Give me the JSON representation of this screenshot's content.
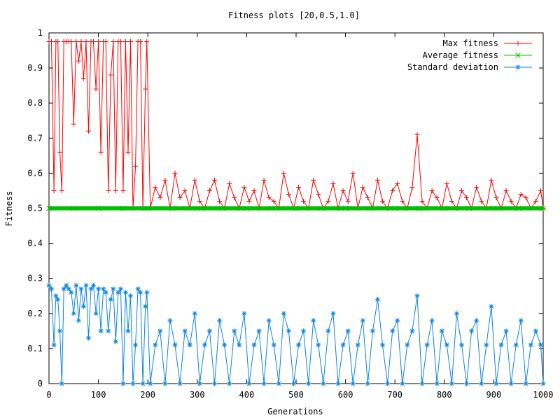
{
  "chart_data": {
    "type": "line",
    "title": "Fitness plots [20,0.5,1.0]",
    "xlabel": "Generations",
    "ylabel": "Fitness",
    "xlim": [
      0,
      1000
    ],
    "ylim": [
      0,
      1
    ],
    "xticks": [
      0,
      100,
      200,
      300,
      400,
      500,
      600,
      700,
      800,
      900,
      1000
    ],
    "yticks": [
      0,
      0.1,
      0.2,
      0.3,
      0.4,
      0.5,
      0.6,
      0.7,
      0.8,
      0.9,
      1
    ],
    "xtick_labels": [
      "0",
      "100",
      "200",
      "300",
      "400",
      "500",
      "600",
      "700",
      "800",
      "900",
      "1000"
    ],
    "ytick_labels": [
      "0",
      "0.1",
      "0.2",
      "0.3",
      "0.4",
      "0.5",
      "0.6",
      "0.7",
      "0.8",
      "0.9",
      "1"
    ],
    "grid": false,
    "legend_position": "top-right",
    "series": [
      {
        "name": "Max fitness",
        "color": "#ff0000",
        "marker": "+",
        "x": [
          0,
          5,
          10,
          14,
          18,
          22,
          26,
          30,
          35,
          40,
          45,
          50,
          55,
          60,
          65,
          70,
          75,
          80,
          85,
          90,
          95,
          100,
          105,
          110,
          115,
          120,
          125,
          130,
          135,
          140,
          145,
          150,
          155,
          160,
          165,
          170,
          175,
          180,
          185,
          190,
          195,
          198,
          205,
          215,
          225,
          235,
          245,
          255,
          265,
          275,
          285,
          295,
          305,
          315,
          325,
          335,
          345,
          355,
          365,
          375,
          385,
          395,
          405,
          415,
          425,
          435,
          445,
          455,
          465,
          475,
          485,
          495,
          505,
          515,
          525,
          535,
          545,
          555,
          565,
          575,
          585,
          595,
          605,
          615,
          625,
          635,
          645,
          655,
          665,
          675,
          685,
          695,
          705,
          715,
          725,
          735,
          745,
          755,
          765,
          775,
          785,
          795,
          805,
          815,
          825,
          835,
          845,
          855,
          865,
          875,
          885,
          895,
          905,
          915,
          925,
          935,
          945,
          955,
          965,
          975,
          985,
          995,
          1000
        ],
        "y": [
          0.975,
          0.975,
          0.55,
          0.975,
          0.975,
          0.66,
          0.55,
          0.975,
          0.975,
          0.975,
          0.975,
          0.74,
          0.975,
          0.92,
          0.975,
          0.87,
          0.975,
          0.72,
          0.975,
          0.975,
          0.84,
          0.975,
          0.66,
          0.975,
          0.975,
          0.55,
          0.88,
          0.975,
          0.55,
          0.975,
          0.975,
          0.55,
          0.975,
          0.66,
          0.975,
          0.5,
          0.62,
          0.975,
          0.975,
          0.5,
          0.84,
          0.975,
          0.5,
          0.56,
          0.53,
          0.58,
          0.5,
          0.6,
          0.53,
          0.55,
          0.5,
          0.58,
          0.52,
          0.5,
          0.55,
          0.58,
          0.52,
          0.5,
          0.57,
          0.53,
          0.5,
          0.56,
          0.52,
          0.55,
          0.5,
          0.58,
          0.53,
          0.52,
          0.5,
          0.6,
          0.54,
          0.5,
          0.56,
          0.52,
          0.5,
          0.58,
          0.54,
          0.5,
          0.52,
          0.57,
          0.5,
          0.55,
          0.52,
          0.6,
          0.5,
          0.56,
          0.53,
          0.5,
          0.58,
          0.52,
          0.5,
          0.55,
          0.57,
          0.52,
          0.5,
          0.56,
          0.71,
          0.52,
          0.5,
          0.55,
          0.53,
          0.5,
          0.57,
          0.52,
          0.5,
          0.55,
          0.53,
          0.5,
          0.56,
          0.52,
          0.5,
          0.58,
          0.53,
          0.5,
          0.55,
          0.52,
          0.5,
          0.54,
          0.53,
          0.5,
          0.52,
          0.55,
          0.5
        ]
      },
      {
        "name": "Average fitness",
        "color": "#00c000",
        "marker": "x",
        "x": [
          0,
          50,
          100,
          150,
          200,
          250,
          300,
          350,
          400,
          450,
          500,
          550,
          600,
          650,
          700,
          750,
          800,
          850,
          900,
          950,
          1000
        ],
        "y": [
          0.5,
          0.5,
          0.5,
          0.5,
          0.5,
          0.5,
          0.5,
          0.5,
          0.5,
          0.5,
          0.5,
          0.5,
          0.5,
          0.5,
          0.5,
          0.5,
          0.5,
          0.5,
          0.5,
          0.5,
          0.5
        ]
      },
      {
        "name": "Standard deviation",
        "color": "#0a84e0",
        "marker": "*",
        "x": [
          0,
          5,
          10,
          14,
          18,
          22,
          26,
          30,
          35,
          40,
          45,
          50,
          55,
          60,
          65,
          70,
          75,
          80,
          85,
          90,
          95,
          100,
          105,
          110,
          115,
          120,
          125,
          130,
          135,
          140,
          145,
          150,
          155,
          160,
          165,
          170,
          175,
          180,
          185,
          190,
          195,
          198,
          205,
          215,
          225,
          235,
          245,
          255,
          265,
          275,
          285,
          295,
          305,
          315,
          325,
          335,
          345,
          355,
          365,
          375,
          385,
          395,
          405,
          415,
          425,
          435,
          445,
          455,
          465,
          475,
          485,
          495,
          505,
          515,
          525,
          535,
          545,
          555,
          565,
          575,
          585,
          595,
          605,
          615,
          625,
          635,
          645,
          655,
          665,
          675,
          685,
          695,
          705,
          715,
          725,
          735,
          745,
          755,
          765,
          775,
          785,
          795,
          805,
          815,
          825,
          835,
          845,
          855,
          865,
          875,
          885,
          895,
          905,
          915,
          925,
          935,
          945,
          955,
          965,
          975,
          985,
          995,
          1000
        ],
        "y": [
          0.28,
          0.27,
          0.11,
          0.25,
          0.24,
          0.15,
          0.0,
          0.27,
          0.28,
          0.27,
          0.26,
          0.2,
          0.28,
          0.18,
          0.27,
          0.22,
          0.28,
          0.13,
          0.27,
          0.28,
          0.2,
          0.27,
          0.15,
          0.27,
          0.26,
          0.15,
          0.24,
          0.27,
          0.12,
          0.26,
          0.27,
          0.0,
          0.26,
          0.15,
          0.25,
          0.0,
          0.11,
          0.27,
          0.26,
          0.0,
          0.22,
          0.26,
          0.0,
          0.11,
          0.15,
          0.0,
          0.18,
          0.11,
          0.0,
          0.15,
          0.11,
          0.2,
          0.0,
          0.11,
          0.15,
          0.0,
          0.18,
          0.11,
          0.0,
          0.15,
          0.11,
          0.2,
          0.0,
          0.11,
          0.15,
          0.0,
          0.18,
          0.11,
          0.0,
          0.2,
          0.15,
          0.0,
          0.11,
          0.15,
          0.0,
          0.18,
          0.11,
          0.0,
          0.15,
          0.2,
          0.0,
          0.11,
          0.15,
          0.0,
          0.11,
          0.18,
          0.0,
          0.15,
          0.24,
          0.11,
          0.0,
          0.15,
          0.18,
          0.0,
          0.11,
          0.15,
          0.25,
          0.0,
          0.11,
          0.18,
          0.0,
          0.15,
          0.11,
          0.0,
          0.2,
          0.11,
          0.0,
          0.15,
          0.18,
          0.0,
          0.11,
          0.22,
          0.0,
          0.11,
          0.15,
          0.0,
          0.11,
          0.18,
          0.0,
          0.11,
          0.15,
          0.11,
          0.0
        ]
      }
    ]
  }
}
